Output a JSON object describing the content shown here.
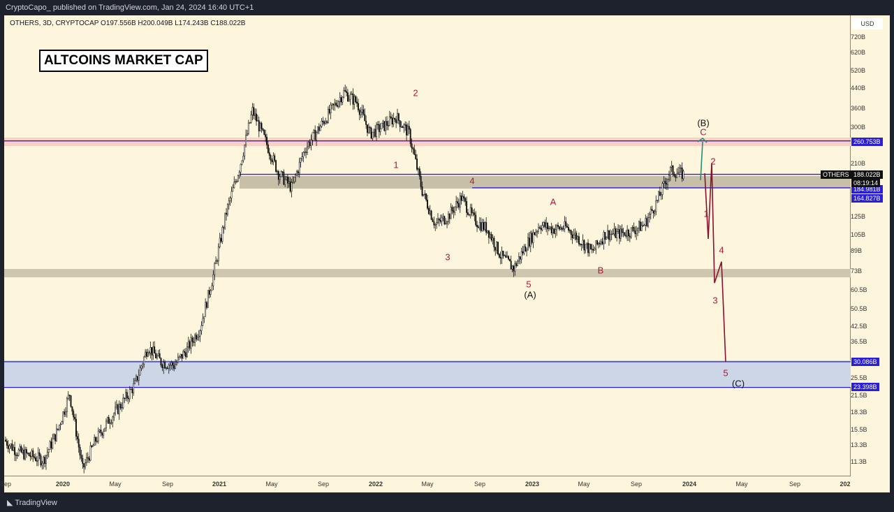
{
  "publisher_line": "CryptoCapo_ published on TradingView.com, Jan 24, 2024 16:40 UTC+1",
  "footer": "TradingView",
  "legend": "OTHERS, 3D, CRYPTOCAP  O197.556B  H200.049B  L174.243B  C188.022B",
  "chart_data": {
    "type": "candlestick",
    "title": "ALTCOINS MARKET CAP",
    "symbol": "OTHERS",
    "interval": "3D",
    "exchange": "CRYPTOCAP",
    "ohlc_last": {
      "open": "197.556B",
      "high": "200.049B",
      "low": "174.243B",
      "close": "188.022B"
    },
    "currency": "USD",
    "scale": "log",
    "yticks": [
      "720B",
      "620B",
      "520B",
      "440B",
      "360B",
      "300B",
      "210B",
      "125B",
      "105B",
      "89B",
      "73B",
      "60.5B",
      "50.5B",
      "42.5B",
      "36.5B",
      "25.5B",
      "21.5B",
      "18.3B",
      "15.5B",
      "13.3B",
      "11.3B"
    ],
    "xticks": [
      {
        "label": "Sep",
        "bold": false
      },
      {
        "label": "2020",
        "bold": true
      },
      {
        "label": "May",
        "bold": false
      },
      {
        "label": "Sep",
        "bold": false
      },
      {
        "label": "2021",
        "bold": true
      },
      {
        "label": "May",
        "bold": false
      },
      {
        "label": "Sep",
        "bold": false
      },
      {
        "label": "2022",
        "bold": true
      },
      {
        "label": "May",
        "bold": false
      },
      {
        "label": "Sep",
        "bold": false
      },
      {
        "label": "2023",
        "bold": true
      },
      {
        "label": "May",
        "bold": false
      },
      {
        "label": "Sep",
        "bold": false
      },
      {
        "label": "2024",
        "bold": true
      },
      {
        "label": "May",
        "bold": false
      },
      {
        "label": "Sep",
        "bold": false
      },
      {
        "label": "202",
        "bold": true
      }
    ],
    "monthly_close_B_from_2019_09": [
      14,
      12.5,
      12,
      11.5,
      15,
      22,
      10.5,
      14,
      17,
      20,
      24,
      35,
      30,
      29,
      34,
      42,
      70,
      130,
      200,
      350,
      260,
      190,
      165,
      240,
      290,
      350,
      420,
      380,
      280,
      300,
      330,
      280,
      160,
      115,
      125,
      150,
      120,
      110,
      85,
      75,
      95,
      115,
      110,
      112,
      100,
      88,
      105,
      105,
      108,
      115,
      145,
      195,
      188
    ],
    "price_tags": {
      "current": "188.022B",
      "countdown": "08:19:14",
      "symbol_tag": "OTHERS",
      "levels": [
        "260.753B",
        "184.981B",
        "164.827B",
        "30.086B",
        "23.398B"
      ]
    },
    "wave_labels": [
      "2",
      "1",
      "3",
      "4",
      "5",
      "(A)",
      "A",
      "B",
      "(B)",
      "C",
      "2",
      "1",
      "4",
      "3",
      "5",
      "(C)"
    ],
    "projection_B": [
      190,
      100,
      210,
      65,
      80,
      30
    ]
  }
}
